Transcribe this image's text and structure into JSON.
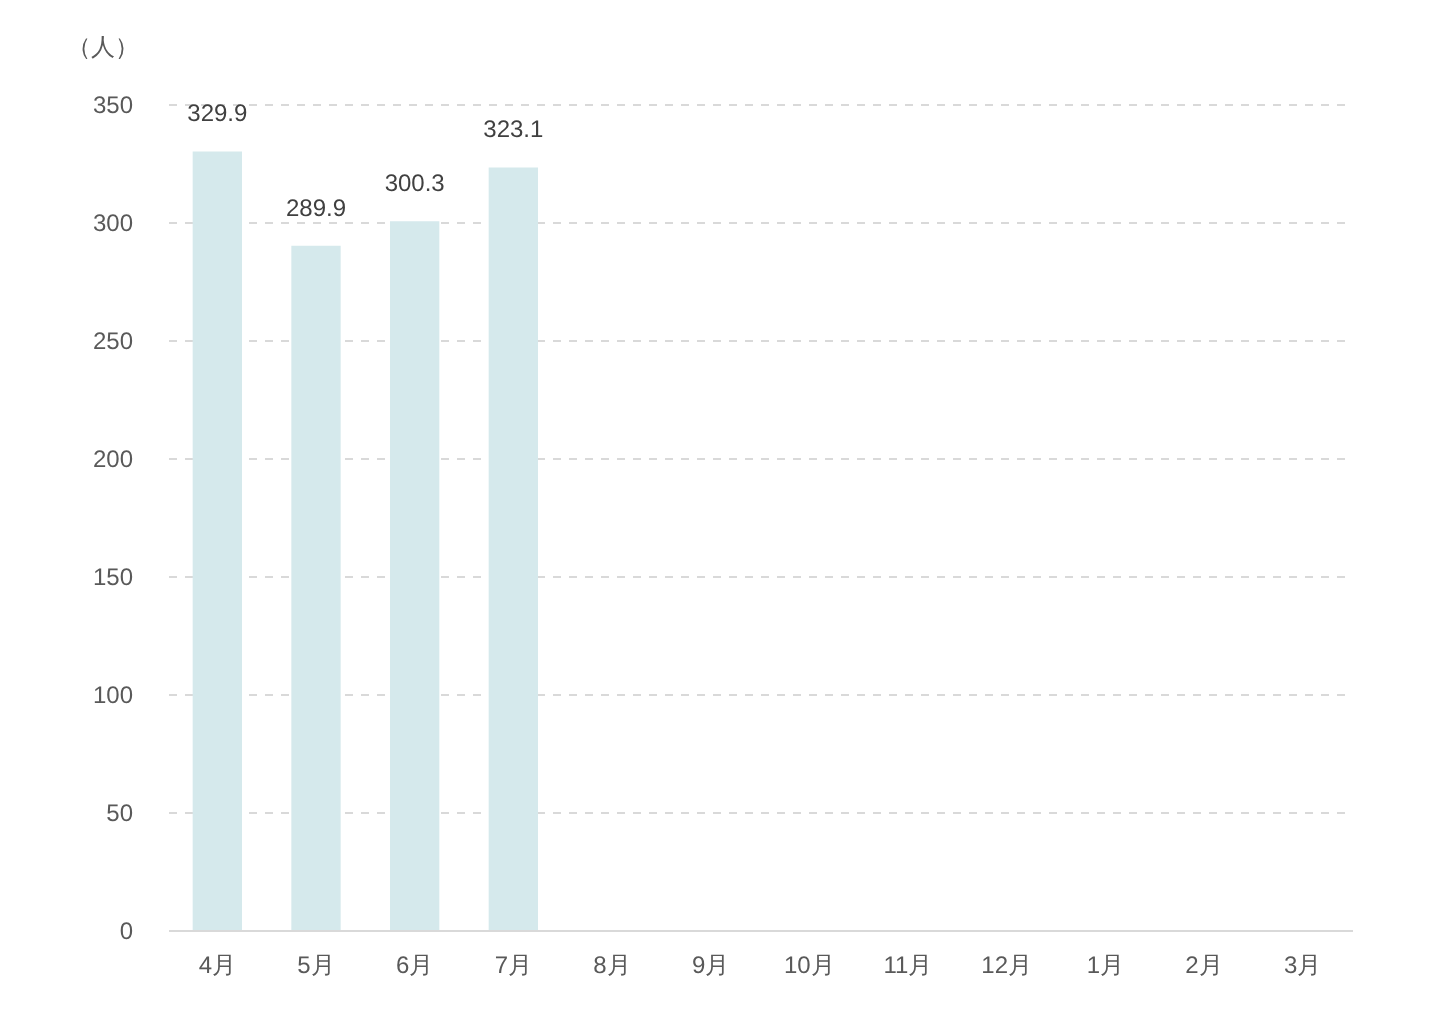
{
  "chart_data": {
    "type": "bar",
    "ylabel": "（人）",
    "categories": [
      "4月",
      "5月",
      "6月",
      "7月",
      "8月",
      "9月",
      "10月",
      "11月",
      "12月",
      "1月",
      "2月",
      "3月"
    ],
    "values": [
      329.9,
      289.9,
      300.3,
      323.1,
      null,
      null,
      null,
      null,
      null,
      null,
      null,
      null
    ],
    "color": "#d5e9ec",
    "ylim": [
      0,
      350
    ],
    "yticks": [
      0,
      50,
      100,
      150,
      200,
      250,
      300,
      350
    ],
    "grid": "y",
    "data_labels": true
  }
}
